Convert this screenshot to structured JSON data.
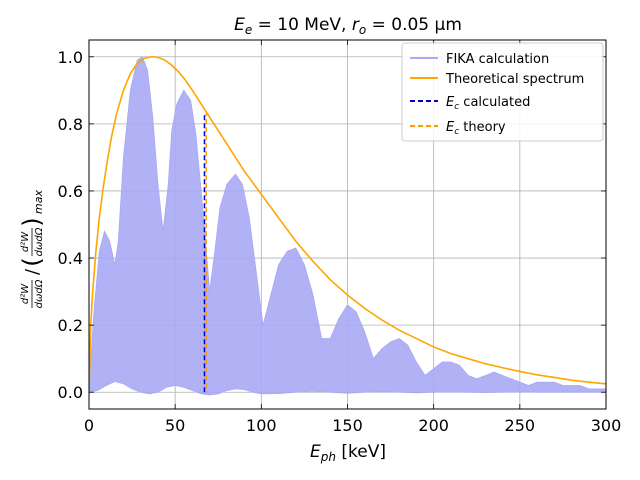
{
  "chart_data": {
    "type": "line",
    "title": "E_e = 10 MeV, r_o = 0.05 μm",
    "title_parts": {
      "lhs_main": "E",
      "lhs_sub": "e",
      "lhs_value": " = 10 MeV, ",
      "rhs_main": "r",
      "rhs_sub": "o",
      "rhs_value": " = 0.05 μm"
    },
    "xlabel": "E_ph [keV]",
    "xlabel_parts": {
      "main": "E",
      "sub": "ph",
      "unit": " [keV]"
    },
    "ylabel": "(d²W/dωdΩ) / (d²W/dωdΩ)_max",
    "xlim": [
      0,
      300
    ],
    "ylim": [
      -0.05,
      1.05
    ],
    "xticks": [
      0,
      50,
      100,
      150,
      200,
      250,
      300
    ],
    "yticks": [
      0.0,
      0.2,
      0.4,
      0.6,
      0.8,
      1.0
    ],
    "xtick_labels": [
      "0",
      "50",
      "100",
      "150",
      "200",
      "250",
      "300"
    ],
    "ytick_labels": [
      "0.0",
      "0.2",
      "0.4",
      "0.6",
      "0.8",
      "1.0"
    ],
    "grid": true,
    "legend_position": "top-right",
    "colors": {
      "fika": "#a9a9f5",
      "theory": "#ffa500",
      "ec_calc": "#0000cc",
      "ec_theory": "#ff9900"
    },
    "series": [
      {
        "name": "FIKA calculation",
        "style": "filled-band",
        "upper_envelope": {
          "x": [
            0,
            3,
            6,
            9,
            12,
            15,
            17,
            20,
            24,
            28,
            31,
            34,
            37,
            40,
            43,
            46,
            48,
            51,
            55,
            59,
            62,
            66,
            70,
            73,
            76,
            80,
            85,
            89,
            93,
            97,
            101,
            106,
            110,
            115,
            120,
            125,
            130,
            135,
            140,
            145,
            150,
            155,
            160,
            165,
            170,
            175,
            180,
            185,
            190,
            195,
            200,
            205,
            210,
            215,
            220,
            225,
            230,
            235,
            240,
            245,
            250,
            255,
            260,
            265,
            270,
            275,
            280,
            285,
            290,
            295,
            300
          ],
          "y": [
            0.02,
            0.25,
            0.42,
            0.48,
            0.45,
            0.38,
            0.45,
            0.7,
            0.9,
            0.99,
            1.0,
            0.96,
            0.82,
            0.62,
            0.48,
            0.62,
            0.78,
            0.86,
            0.9,
            0.87,
            0.77,
            0.55,
            0.3,
            0.42,
            0.55,
            0.62,
            0.65,
            0.62,
            0.52,
            0.36,
            0.2,
            0.3,
            0.38,
            0.42,
            0.43,
            0.38,
            0.29,
            0.16,
            0.16,
            0.22,
            0.26,
            0.24,
            0.18,
            0.1,
            0.13,
            0.15,
            0.16,
            0.14,
            0.09,
            0.05,
            0.07,
            0.09,
            0.09,
            0.08,
            0.05,
            0.04,
            0.05,
            0.06,
            0.05,
            0.04,
            0.03,
            0.02,
            0.03,
            0.03,
            0.03,
            0.02,
            0.02,
            0.02,
            0.01,
            0.01,
            0.01
          ]
        },
        "lower_envelope": {
          "x": [
            0,
            5,
            10,
            15,
            20,
            25,
            30,
            35,
            40,
            45,
            50,
            55,
            60,
            65,
            70,
            75,
            80,
            85,
            90,
            95,
            100,
            110,
            120,
            130,
            140,
            150,
            160,
            170,
            180,
            190,
            200,
            210,
            220,
            230,
            240,
            250,
            260,
            270,
            280,
            290,
            300
          ],
          "y": [
            0.0,
            0.005,
            0.02,
            0.032,
            0.025,
            0.01,
            0.0,
            -0.005,
            0.0,
            0.015,
            0.02,
            0.015,
            0.005,
            -0.005,
            -0.008,
            -0.005,
            0.005,
            0.01,
            0.008,
            0.0,
            -0.005,
            -0.004,
            0.0,
            0.003,
            0.0,
            -0.003,
            0.0,
            0.002,
            0.0,
            -0.002,
            0.0,
            0.001,
            0.0,
            -0.001,
            0.0,
            0.001,
            0.0,
            0.0,
            0.0,
            0.0,
            0.0
          ]
        }
      },
      {
        "name": "Theoretical spectrum",
        "style": "line",
        "x": [
          0,
          1,
          2,
          4,
          6,
          8,
          10,
          13,
          16,
          20,
          24,
          28,
          32,
          36,
          38,
          40,
          44,
          48,
          52,
          56,
          60,
          65,
          70,
          75,
          80,
          90,
          100,
          110,
          120,
          130,
          140,
          150,
          160,
          170,
          180,
          190,
          200,
          210,
          220,
          230,
          240,
          250,
          260,
          270,
          280,
          290,
          300
        ],
        "y": [
          0.0,
          0.2,
          0.29,
          0.42,
          0.52,
          0.6,
          0.67,
          0.76,
          0.83,
          0.9,
          0.95,
          0.98,
          0.995,
          1.0,
          1.0,
          0.998,
          0.99,
          0.975,
          0.955,
          0.93,
          0.9,
          0.86,
          0.82,
          0.78,
          0.74,
          0.66,
          0.59,
          0.52,
          0.45,
          0.39,
          0.335,
          0.29,
          0.25,
          0.215,
          0.185,
          0.16,
          0.135,
          0.115,
          0.1,
          0.085,
          0.073,
          0.062,
          0.052,
          0.044,
          0.036,
          0.03,
          0.025
        ]
      },
      {
        "name": "E_c calculated",
        "name_parts": {
          "main": "E",
          "sub": "c",
          "rest": " calculated"
        },
        "style": "dashed-vertical",
        "x": [
          67,
          67
        ],
        "y": [
          0.0,
          0.83
        ]
      },
      {
        "name": "E_c theory",
        "name_parts": {
          "main": "E",
          "sub": "c",
          "rest": " theory"
        },
        "style": "dashed-vertical",
        "x": [
          68,
          68
        ],
        "y": [
          0.0,
          0.83
        ]
      }
    ]
  }
}
